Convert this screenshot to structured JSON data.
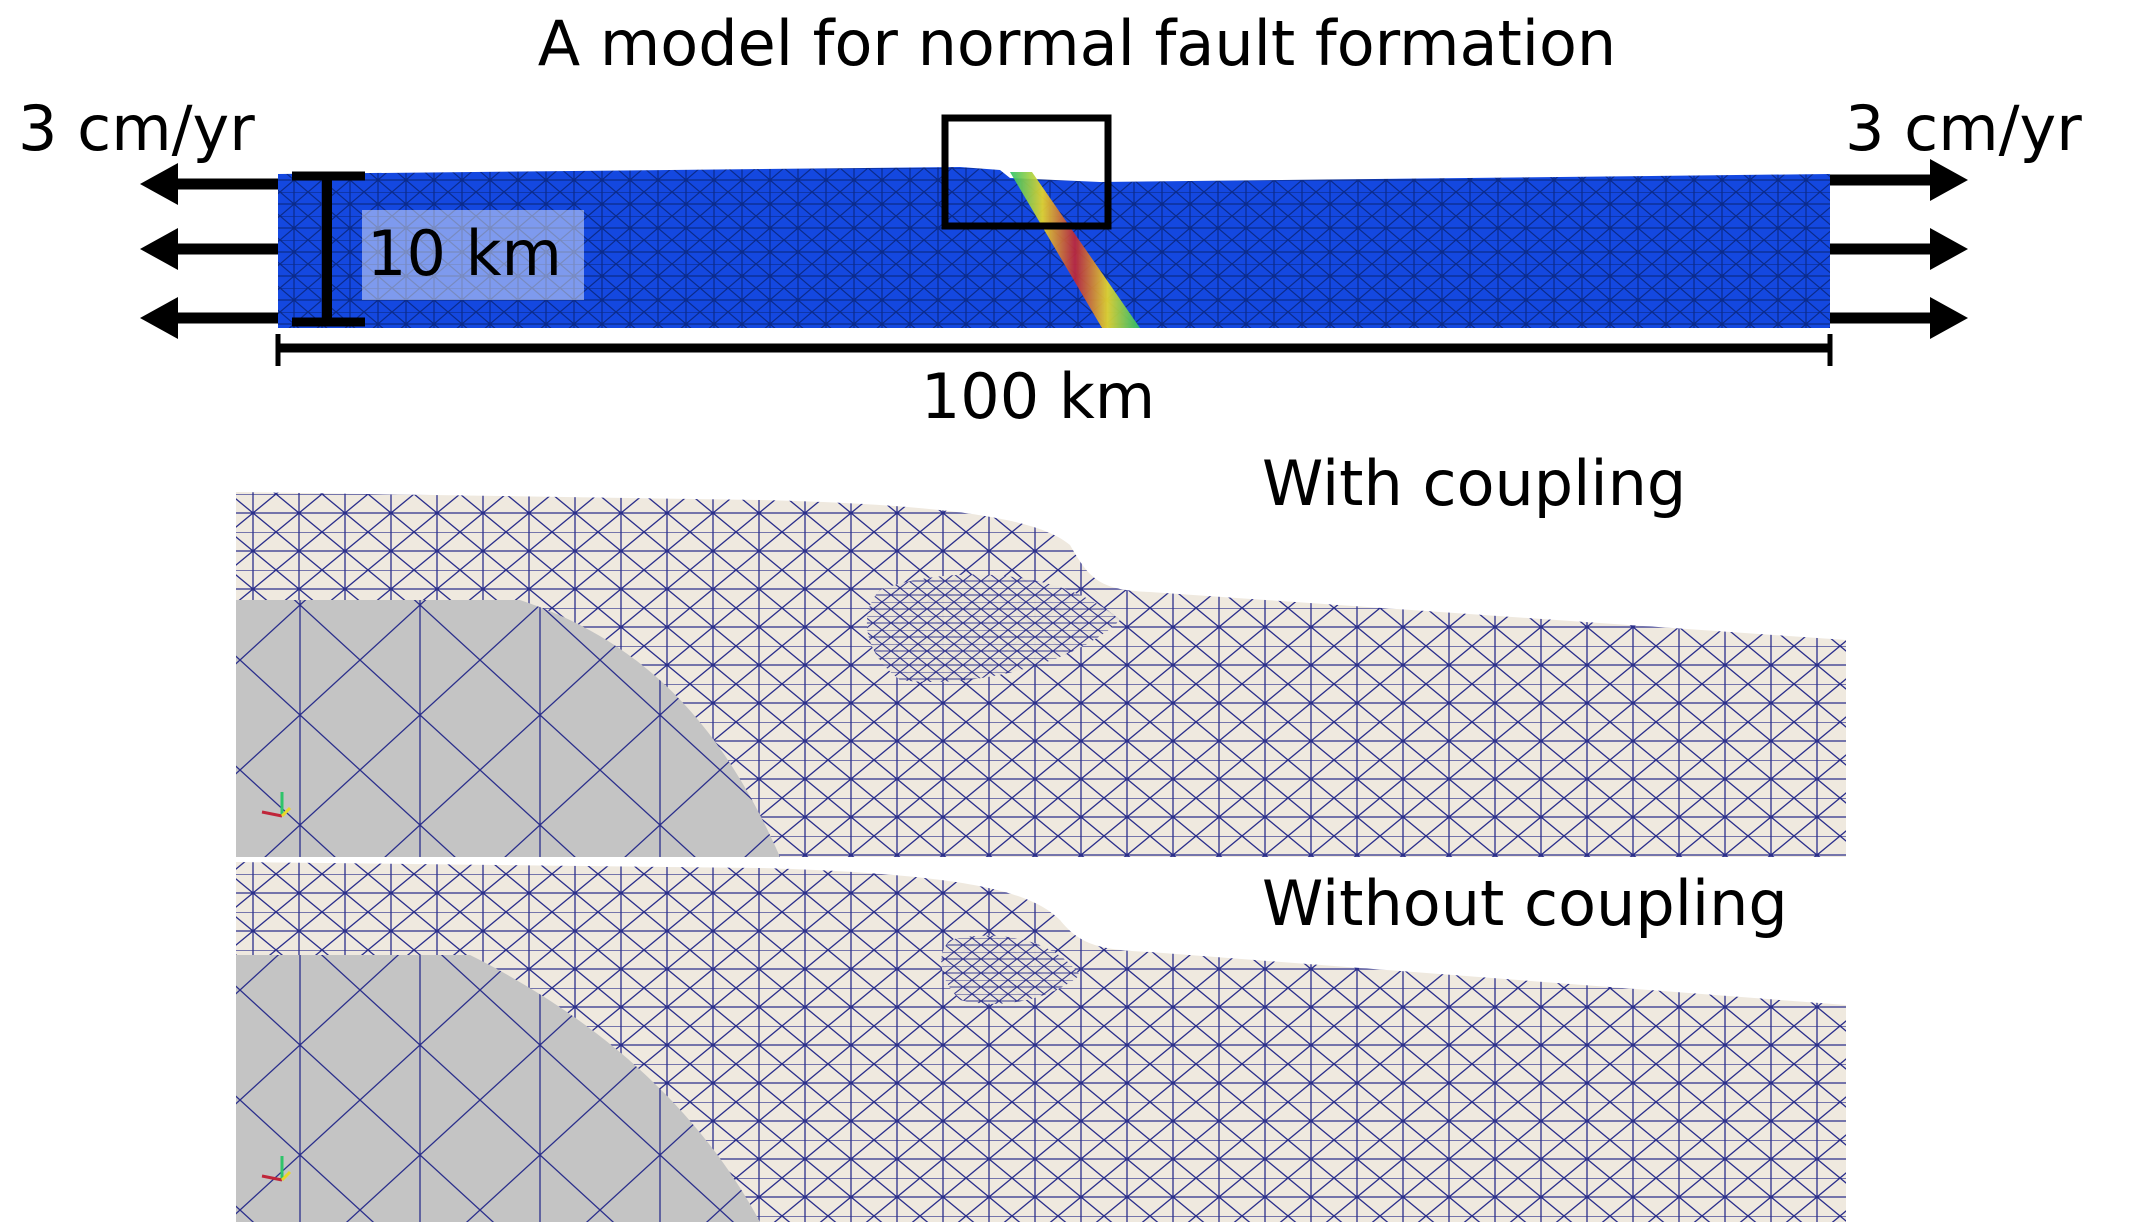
{
  "title": "A model for normal fault formation",
  "top_model": {
    "left_velocity": "3 cm/yr",
    "right_velocity": "3 cm/yr",
    "height_label": "10 km",
    "width_label": "100 km",
    "colors": {
      "mesh_fill": "#1448e0",
      "mesh_line": "#0a2a8a",
      "fault_hot": "#c0263a",
      "fault_warm": "#e8d82a",
      "fault_cool": "#2ec46a"
    }
  },
  "panels": [
    {
      "label": "With coupling"
    },
    {
      "label": "Without coupling"
    }
  ],
  "mesh_colors": {
    "surface": "#efe9df",
    "side": "#c4c4c4",
    "wire": "#2b2f8c"
  }
}
